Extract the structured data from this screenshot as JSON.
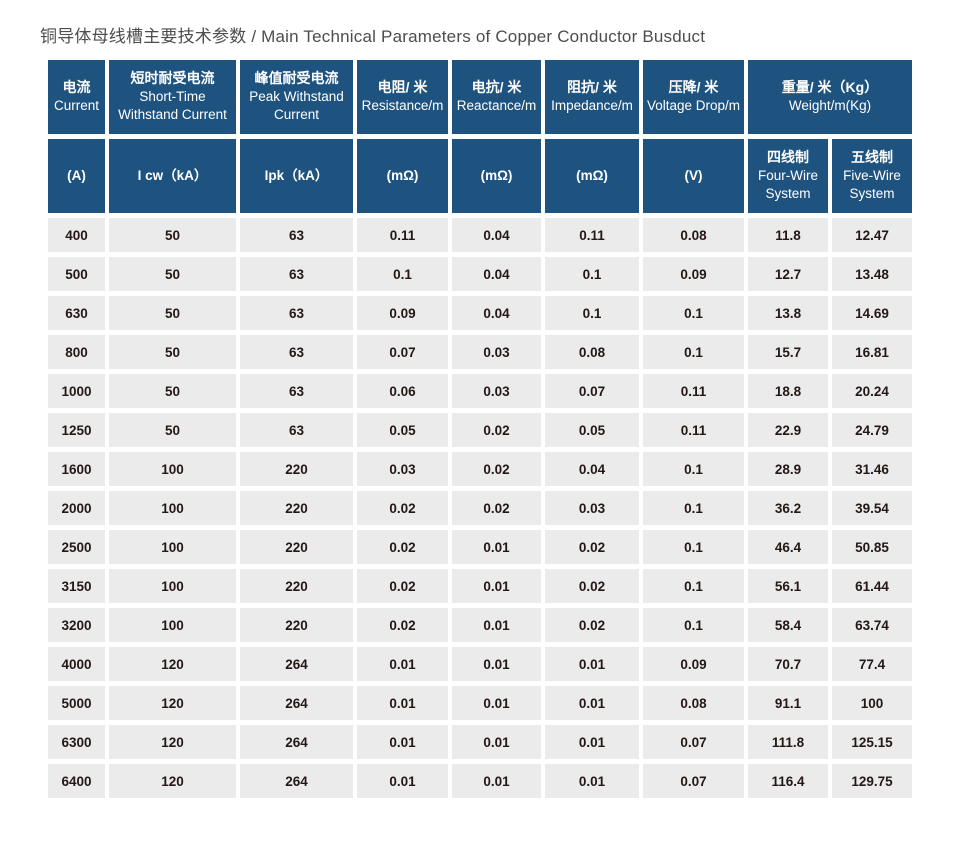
{
  "page": {
    "title": "铜导体母线槽主要技术参数 / Main Technical Parameters of Copper Conductor Busduct"
  },
  "colors": {
    "header_bg": "#1e5380",
    "header_text": "#ffffff",
    "cell_bg": "#ebebeb",
    "cell_text": "#231815",
    "title_text": "#4d4d4d"
  },
  "table": {
    "header_row1": [
      {
        "zh": "电流",
        "en": "Current"
      },
      {
        "zh": "短时耐受电流",
        "en": "Short-Time Withstand Current"
      },
      {
        "zh": "峰值耐受电流",
        "en": "Peak Withstand Current"
      },
      {
        "zh": "电阻/ 米",
        "en": "Resistance/m"
      },
      {
        "zh": "电抗/ 米",
        "en": "Reactance/m"
      },
      {
        "zh": "阻抗/ 米",
        "en": "Impedance/m"
      },
      {
        "zh": "压降/ 米",
        "en": "Voltage Drop/m"
      },
      {
        "zh": "重量/ 米（Kg）",
        "en": "Weight/m(Kg)"
      }
    ],
    "header_row2": [
      {
        "label": "(A)"
      },
      {
        "label": "I cw（kA）"
      },
      {
        "label": "Ipk（kA）"
      },
      {
        "label": "(mΩ)"
      },
      {
        "label": "(mΩ)"
      },
      {
        "label": "(mΩ)"
      },
      {
        "label": "(V)"
      },
      {
        "zh": "四线制",
        "en": "Four-Wire System"
      },
      {
        "zh": "五线制",
        "en": "Five-Wire System"
      }
    ],
    "rows": [
      [
        "400",
        "50",
        "63",
        "0.11",
        "0.04",
        "0.11",
        "0.08",
        "11.8",
        "12.47"
      ],
      [
        "500",
        "50",
        "63",
        "0.1",
        "0.04",
        "0.1",
        "0.09",
        "12.7",
        "13.48"
      ],
      [
        "630",
        "50",
        "63",
        "0.09",
        "0.04",
        "0.1",
        "0.1",
        "13.8",
        "14.69"
      ],
      [
        "800",
        "50",
        "63",
        "0.07",
        "0.03",
        "0.08",
        "0.1",
        "15.7",
        "16.81"
      ],
      [
        "1000",
        "50",
        "63",
        "0.06",
        "0.03",
        "0.07",
        "0.11",
        "18.8",
        "20.24"
      ],
      [
        "1250",
        "50",
        "63",
        "0.05",
        "0.02",
        "0.05",
        "0.11",
        "22.9",
        "24.79"
      ],
      [
        "1600",
        "100",
        "220",
        "0.03",
        "0.02",
        "0.04",
        "0.1",
        "28.9",
        "31.46"
      ],
      [
        "2000",
        "100",
        "220",
        "0.02",
        "0.02",
        "0.03",
        "0.1",
        "36.2",
        "39.54"
      ],
      [
        "2500",
        "100",
        "220",
        "0.02",
        "0.01",
        "0.02",
        "0.1",
        "46.4",
        "50.85"
      ],
      [
        "3150",
        "100",
        "220",
        "0.02",
        "0.01",
        "0.02",
        "0.1",
        "56.1",
        "61.44"
      ],
      [
        "3200",
        "100",
        "220",
        "0.02",
        "0.01",
        "0.02",
        "0.1",
        "58.4",
        "63.74"
      ],
      [
        "4000",
        "120",
        "264",
        "0.01",
        "0.01",
        "0.01",
        "0.09",
        "70.7",
        "77.4"
      ],
      [
        "5000",
        "120",
        "264",
        "0.01",
        "0.01",
        "0.01",
        "0.08",
        "91.1",
        "100"
      ],
      [
        "6300",
        "120",
        "264",
        "0.01",
        "0.01",
        "0.01",
        "0.07",
        "111.8",
        "125.15"
      ],
      [
        "6400",
        "120",
        "264",
        "0.01",
        "0.01",
        "0.01",
        "0.07",
        "116.4",
        "129.75"
      ]
    ]
  }
}
